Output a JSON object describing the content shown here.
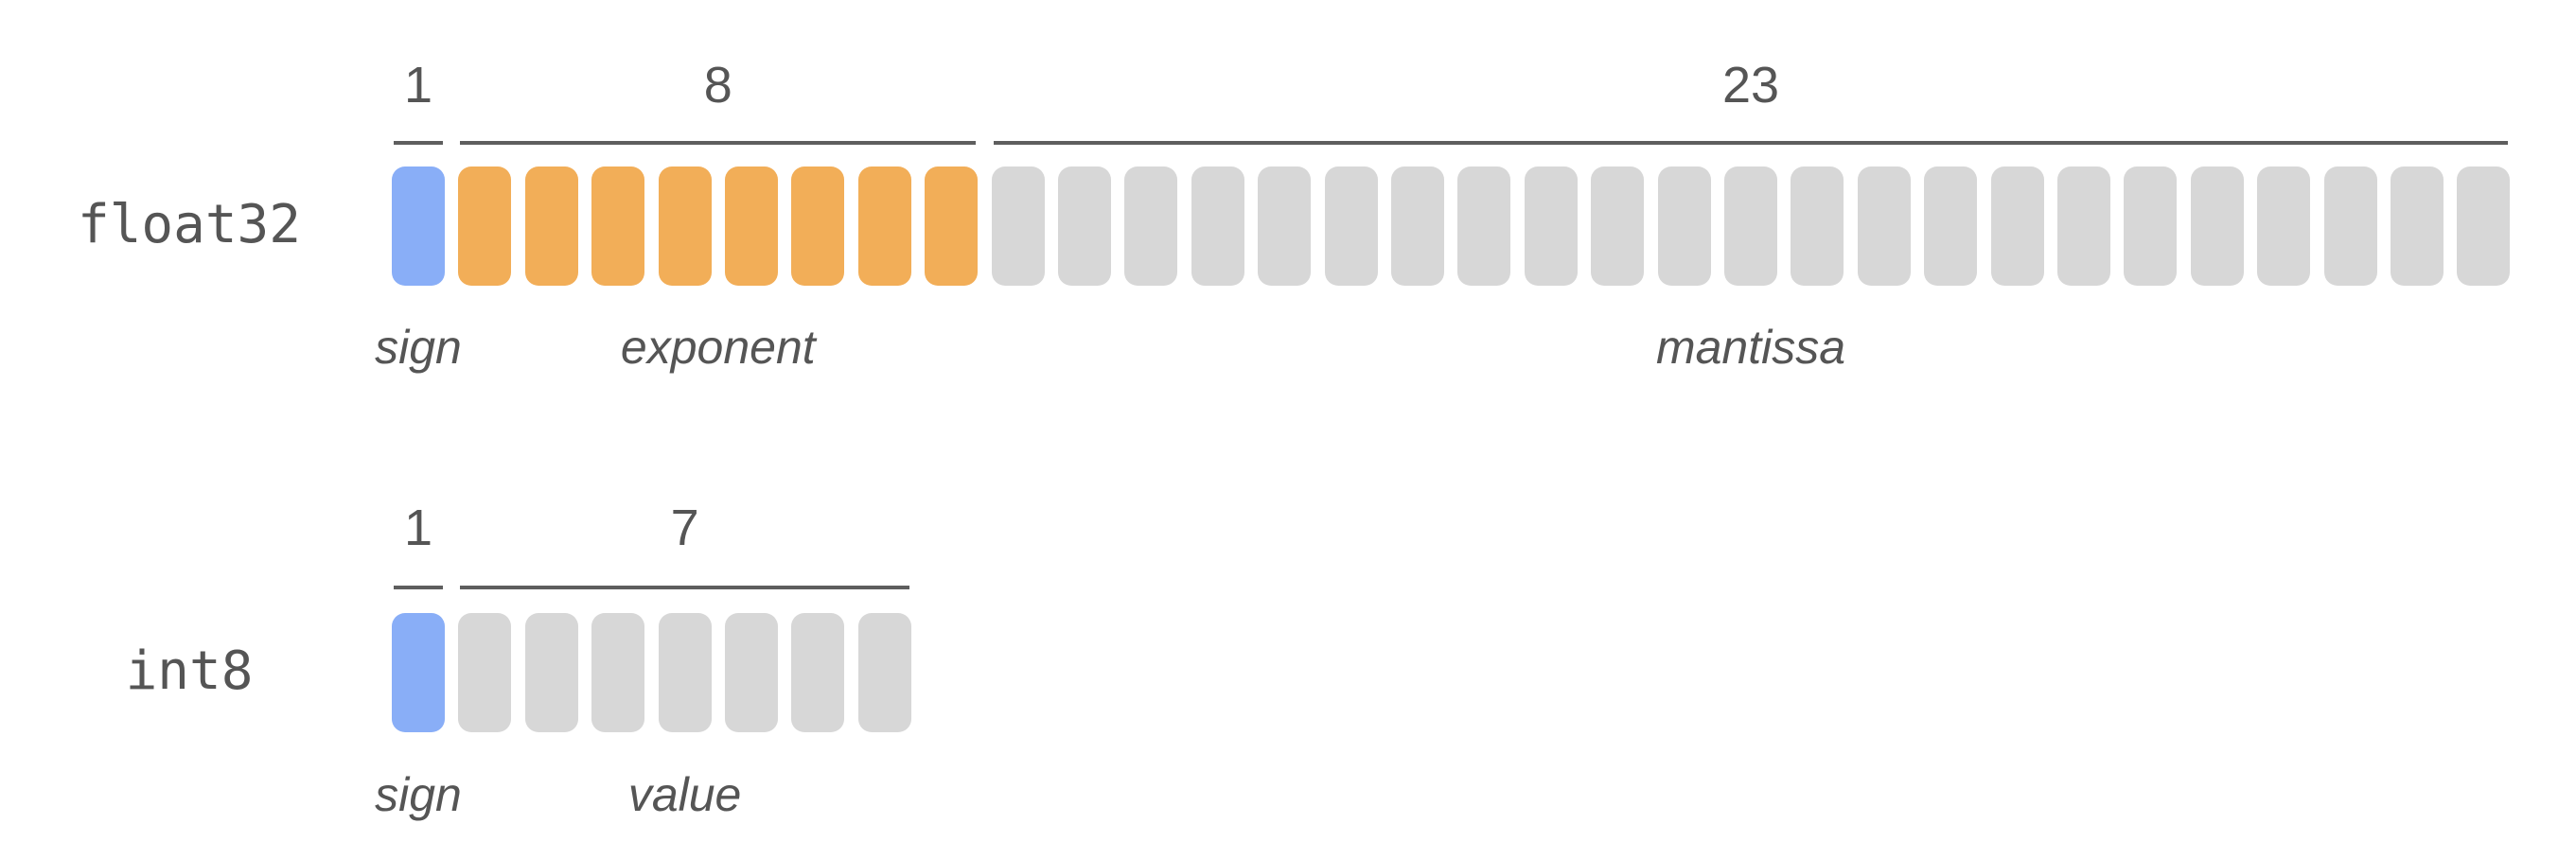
{
  "colors": {
    "sign": "#89aef7",
    "exponent": "#f2ae58",
    "other": "#d7d7d7"
  },
  "rows": [
    {
      "name": "float32",
      "fields": [
        {
          "label": "sign",
          "bits": 1,
          "count_label": "1",
          "color_key": "sign"
        },
        {
          "label": "exponent",
          "bits": 8,
          "count_label": "8",
          "color_key": "exponent"
        },
        {
          "label": "mantissa",
          "bits": 23,
          "count_label": "23",
          "color_key": "other"
        }
      ]
    },
    {
      "name": "int8",
      "fields": [
        {
          "label": "sign",
          "bits": 1,
          "count_label": "1",
          "color_key": "sign"
        },
        {
          "label": "value",
          "bits": 7,
          "count_label": "7",
          "color_key": "other"
        }
      ]
    }
  ]
}
